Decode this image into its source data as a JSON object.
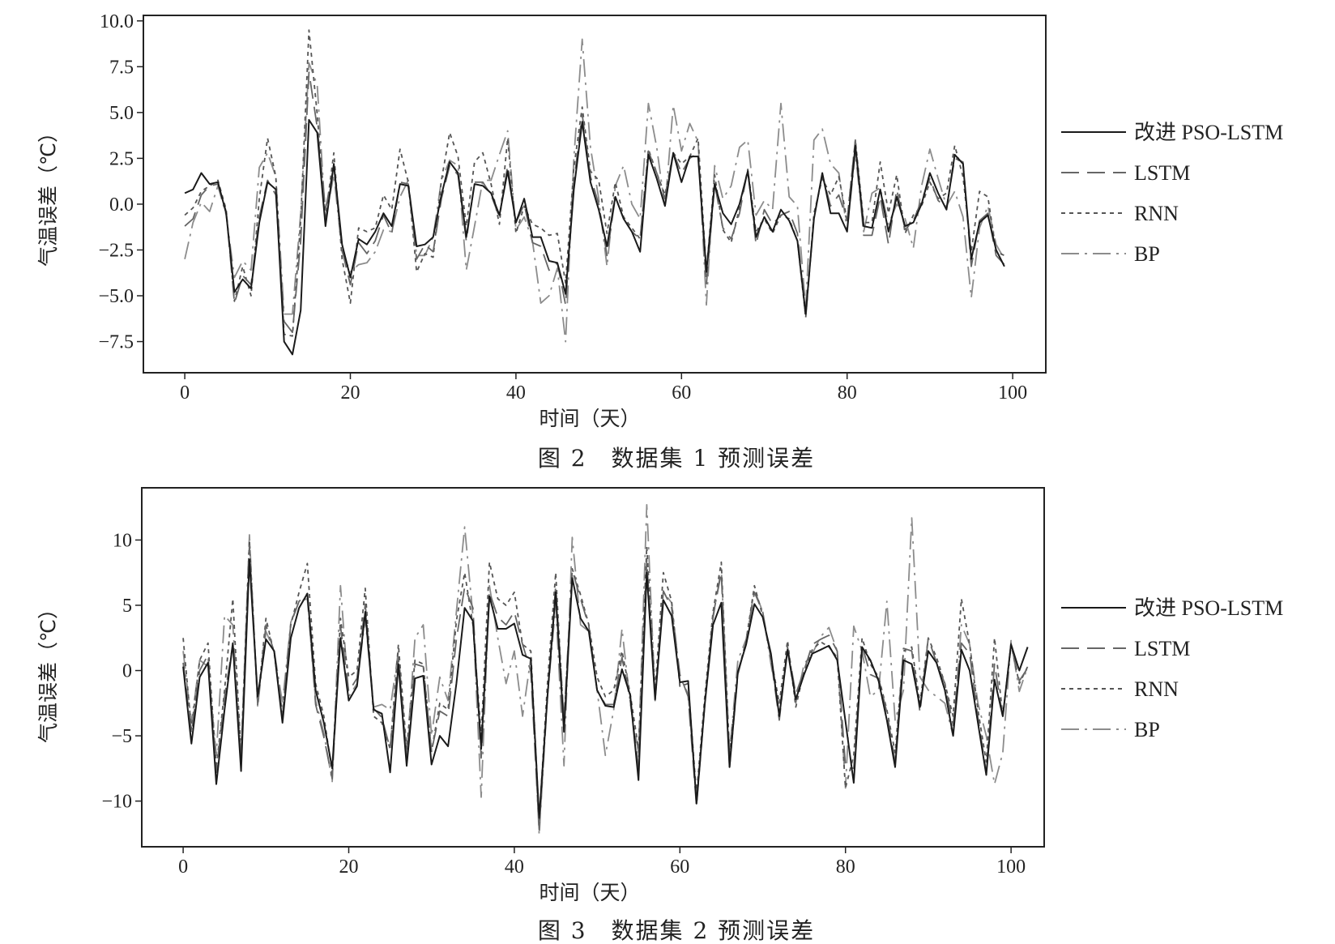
{
  "chart_data": [
    {
      "type": "line",
      "caption": "图 2　数据集 1 预测误差",
      "xlabel": "时间（天）",
      "ylabel": "气温误差（℃）",
      "xlim": [
        -5,
        104
      ],
      "ylim": [
        -9.2,
        10.3
      ],
      "xticks": [
        0,
        20,
        40,
        60,
        80,
        100
      ],
      "xtick_labels": [
        "0",
        "20",
        "40",
        "60",
        "80",
        "100"
      ],
      "yticks": [
        -7.5,
        -5.0,
        -2.5,
        0.0,
        2.5,
        5.0,
        7.5,
        10.0
      ],
      "ytick_labels": [
        "−7.5",
        "−5.0",
        "−2.5",
        "0.0",
        "2.5",
        "5.0",
        "7.5",
        "10.0"
      ],
      "grid": false,
      "legend_position": "outside-right",
      "series": [
        {
          "name": "改进 PSO-LSTM",
          "style": "solid",
          "color": "#1a1a1a",
          "values": [
            0.6,
            0.8,
            1.7,
            1.1,
            1.2,
            -0.5,
            -4.8,
            -4.1,
            -4.6,
            -1.0,
            1.2,
            0.8,
            -7.5,
            -8.2,
            -5.8,
            4.6,
            3.9,
            -1.2,
            2.2,
            -2.2,
            -4.0,
            -1.9,
            -2.2,
            -1.5,
            -0.5,
            -1.2,
            1.1,
            1.0,
            -2.3,
            -2.2,
            -1.8,
            0.5,
            2.3,
            1.7,
            -1.8,
            1.1,
            1.0,
            0.6,
            -0.6,
            1.8,
            -1.0,
            0.3,
            -1.8,
            -1.8,
            -3.1,
            -3.2,
            -4.9,
            0.8,
            4.5,
            1.2,
            -0.3,
            -2.3,
            0.4,
            -0.8,
            -1.5,
            -2.6,
            2.7,
            1.4,
            -0.1,
            2.8,
            1.2,
            2.6,
            2.6,
            -3.7,
            1.1,
            -0.5,
            -1.1,
            0.0,
            1.8,
            -1.8,
            -0.7,
            -1.5,
            -0.3,
            -0.9,
            -2.0,
            -6.0,
            -0.8,
            1.7,
            -0.5,
            -0.5,
            -1.5,
            3.2,
            -1.2,
            -1.3,
            0.8,
            -1.5,
            0.4,
            -1.2,
            -1.0,
            0.0,
            1.7,
            0.6,
            -0.3,
            2.7,
            2.2,
            -3.0,
            -1.0,
            -0.6,
            -2.5,
            -3.4
          ]
        },
        {
          "name": "LSTM",
          "style": "longdash",
          "color": "#666666",
          "values": [
            -1.2,
            -0.8,
            0.5,
            1.0,
            1.1,
            -0.4,
            -5.4,
            -3.9,
            -4.4,
            -0.7,
            1.3,
            0.5,
            -6.4,
            -7.0,
            -2.0,
            7.2,
            4.2,
            -0.3,
            2.1,
            -2.5,
            -4.4,
            -2.1,
            -2.7,
            -2.0,
            -0.6,
            -1.6,
            1.2,
            1.1,
            -3.0,
            -2.2,
            -2.6,
            0.3,
            2.1,
            1.6,
            -2.0,
            1.2,
            1.2,
            0.5,
            -0.7,
            2.1,
            -1.0,
            0.0,
            -2.1,
            -2.3,
            -3.6,
            -3.2,
            -5.5,
            1.2,
            4.9,
            1.5,
            0.0,
            -2.8,
            0.4,
            -0.8,
            -1.5,
            -1.9,
            2.9,
            1.7,
            0.3,
            2.8,
            1.7,
            2.5,
            2.8,
            -4.4,
            1.1,
            -1.3,
            -1.9,
            -0.5,
            1.9,
            -2.2,
            -0.3,
            -1.1,
            -0.6,
            -0.4,
            -1.6,
            -6.2,
            -0.7,
            1.6,
            -0.1,
            0.5,
            -0.9,
            3.5,
            -1.7,
            -1.7,
            0.4,
            -2.2,
            0.8,
            -1.4,
            -0.9,
            0.2,
            1.4,
            0.2,
            -0.2,
            2.5,
            2.3,
            -3.4,
            -0.9,
            -0.5,
            -2.8,
            -3.3
          ]
        },
        {
          "name": "RNN",
          "style": "dotted",
          "color": "#555555",
          "values": [
            -0.6,
            -0.2,
            0.7,
            1.0,
            1.3,
            -0.3,
            -5.3,
            -3.4,
            -5.0,
            0.3,
            3.6,
            1.5,
            -7.1,
            -7.2,
            -0.9,
            9.5,
            4.9,
            -0.7,
            2.8,
            -3.0,
            -5.4,
            -1.3,
            -1.5,
            -1.3,
            0.5,
            -0.3,
            3.0,
            1.2,
            -3.7,
            -2.7,
            -2.9,
            1.3,
            3.9,
            2.6,
            -1.2,
            2.3,
            2.8,
            1.1,
            -1.1,
            3.6,
            -1.6,
            -0.1,
            -1.1,
            -1.3,
            -1.7,
            -1.6,
            -4.3,
            2.0,
            5.3,
            1.8,
            1.3,
            -1.6,
            1.2,
            -0.7,
            -1.3,
            -1.9,
            3.0,
            1.7,
            0.5,
            2.8,
            2.2,
            2.6,
            3.6,
            -3.7,
            1.6,
            -1.4,
            -2.1,
            -0.2,
            1.9,
            -1.5,
            -0.8,
            -1.6,
            -0.6,
            -0.8,
            -2.0,
            -6.2,
            -0.5,
            1.4,
            0.5,
            1.5,
            -0.9,
            3.5,
            -1.0,
            -1.0,
            2.3,
            -0.5,
            1.6,
            -1.6,
            -0.6,
            -0.1,
            1.2,
            0.3,
            0.6,
            3.2,
            1.5,
            -2.6,
            0.7,
            0.4,
            -2.6,
            -2.8
          ]
        },
        {
          "name": "BP",
          "style": "dashdot",
          "color": "#8c8c8c",
          "values": [
            -3.0,
            -1.0,
            0.1,
            -0.4,
            1.0,
            -0.6,
            -4.0,
            -3.1,
            -3.6,
            2.0,
            2.8,
            1.5,
            -6.0,
            -6.0,
            -0.5,
            7.7,
            6.5,
            -0.8,
            1.6,
            -2.6,
            -3.7,
            -3.3,
            -3.2,
            -2.6,
            -1.4,
            -1.5,
            0.4,
            1.3,
            -2.8,
            -2.8,
            -1.8,
            1.3,
            2.4,
            2.1,
            -3.6,
            -1.2,
            1.3,
            1.3,
            2.7,
            4.0,
            -1.4,
            -0.7,
            -2.0,
            -5.4,
            -5.0,
            -3.5,
            -7.5,
            2.5,
            9.0,
            3.1,
            0.3,
            -3.4,
            1.0,
            2.1,
            0.0,
            -0.8,
            5.5,
            3.1,
            -0.2,
            5.4,
            2.9,
            4.4,
            3.4,
            -5.5,
            2.1,
            0.3,
            1.0,
            3.1,
            3.5,
            -0.6,
            0.2,
            -0.3,
            5.5,
            0.4,
            -0.1,
            -5.7,
            3.5,
            4.1,
            2.2,
            1.7,
            -1.4,
            2.8,
            -1.5,
            0.6,
            0.9,
            -1.1,
            0.0,
            -0.8,
            -2.4,
            1.0,
            3.0,
            1.4,
            -0.1,
            0.7,
            -0.7,
            -5.1,
            -1.3,
            -0.1,
            -2.2,
            -3.0
          ]
        }
      ]
    },
    {
      "type": "line",
      "caption": "图 3　数据集 2 预测误差",
      "xlabel": "时间（天）",
      "ylabel": "气温误差（℃）",
      "xlim": [
        -5,
        104
      ],
      "ylim": [
        -13.5,
        14.0
      ],
      "xticks": [
        0,
        20,
        40,
        60,
        80,
        100
      ],
      "xtick_labels": [
        "0",
        "20",
        "40",
        "60",
        "80",
        "100"
      ],
      "yticks": [
        -10,
        -5,
        0,
        5,
        10
      ],
      "ytick_labels": [
        "−10",
        "−5",
        "0",
        "5",
        "10"
      ],
      "grid": false,
      "legend_position": "outside-right",
      "series": [
        {
          "name": "改进 PSO-LSTM",
          "style": "solid",
          "color": "#1a1a1a",
          "values": [
            0.3,
            -5.6,
            -0.5,
            0.6,
            -8.7,
            -3.0,
            2.1,
            -7.7,
            8.5,
            -2.0,
            2.4,
            1.5,
            -4.0,
            2.5,
            4.8,
            5.9,
            -1.5,
            -4.0,
            -7.5,
            2.5,
            -2.3,
            -1.2,
            4.5,
            -3.0,
            -3.3,
            -7.8,
            0.5,
            -7.3,
            -0.6,
            -0.4,
            -7.2,
            -5.0,
            -5.8,
            -1.0,
            4.8,
            3.8,
            -6.0,
            5.7,
            3.2,
            3.2,
            3.6,
            1.2,
            0.9,
            -11.3,
            -2.0,
            6.0,
            -4.7,
            7.1,
            4.0,
            3.0,
            -1.5,
            -2.7,
            -2.8,
            0.1,
            -1.9,
            -8.4,
            7.5,
            -2.2,
            5.4,
            4.2,
            -0.9,
            -0.8,
            -10.2,
            -2.6,
            3.5,
            5.2,
            -7.4,
            -0.1,
            2.0,
            5.1,
            4.1,
            1.3,
            -3.5,
            1.6,
            -2.2,
            -0.3,
            1.3,
            1.6,
            1.9,
            0.8,
            -3.9,
            -8.6,
            1.8,
            0.8,
            -0.8,
            -3.8,
            -7.4,
            0.8,
            0.5,
            -2.8,
            1.5,
            0.6,
            -1.5,
            -5.0,
            1.6,
            0.0,
            -4.0,
            -8.0,
            -0.7,
            -3.5,
            2.0,
            0.0,
            1.8
          ]
        },
        {
          "name": "LSTM",
          "style": "longdash",
          "color": "#666666",
          "values": [
            0.6,
            -4.8,
            0.0,
            1.2,
            -7.8,
            -2.0,
            2.0,
            -7.0,
            9.6,
            -2.6,
            3.5,
            1.4,
            -3.5,
            3.6,
            5.3,
            5.9,
            -2.6,
            -5.1,
            -8.3,
            3.4,
            -1.6,
            -0.6,
            5.1,
            -2.9,
            -3.6,
            -6.0,
            1.0,
            -6.8,
            0.5,
            0.3,
            -6.2,
            -3.1,
            -3.5,
            2.4,
            6.4,
            4.8,
            -6.7,
            6.0,
            4.1,
            3.5,
            4.5,
            2.0,
            -0.1,
            -12.2,
            -1.9,
            6.5,
            -3.8,
            7.7,
            5.5,
            3.4,
            -1.5,
            -2.6,
            -2.6,
            1.0,
            -2.3,
            -7.4,
            8.5,
            -2.3,
            6.1,
            4.8,
            -0.3,
            -2.0,
            -10.4,
            -2.6,
            4.2,
            7.5,
            -7.4,
            -0.3,
            2.2,
            6.0,
            4.5,
            0.9,
            -3.8,
            1.8,
            -1.8,
            0.0,
            2.0,
            2.4,
            2.7,
            1.5,
            -7.3,
            -7.5,
            1.9,
            -0.3,
            -0.6,
            -3.2,
            -7.0,
            1.7,
            1.5,
            -3.2,
            2.5,
            0.6,
            -1.0,
            -4.2,
            2.1,
            1.3,
            -3.6,
            -7.8,
            0.5,
            -3.6,
            2.1,
            -0.8,
            0.2
          ]
        },
        {
          "name": "RNN",
          "style": "dotted",
          "color": "#555555",
          "values": [
            2.5,
            -4.5,
            0.8,
            2.1,
            -7.5,
            -1.5,
            5.5,
            -6.5,
            10.0,
            -2.5,
            4.0,
            1.3,
            -3.3,
            3.5,
            6.0,
            8.2,
            -1.0,
            -3.5,
            -7.8,
            4.0,
            -0.5,
            0.0,
            6.3,
            -3.5,
            -4.0,
            -6.0,
            2.0,
            -6.0,
            0.8,
            0.5,
            -6.2,
            -2.5,
            -3.0,
            3.8,
            7.5,
            3.5,
            -5.0,
            8.3,
            5.5,
            5.0,
            6.0,
            2.0,
            1.5,
            -11.5,
            -1.0,
            7.5,
            -4.2,
            7.8,
            5.8,
            3.5,
            -0.5,
            -2.0,
            -1.5,
            1.5,
            -1.8,
            -6.0,
            9.5,
            -1.5,
            7.5,
            5.3,
            -1.2,
            -1.0,
            -9.5,
            -2.0,
            4.5,
            8.3,
            -6.5,
            -0.2,
            2.3,
            6.5,
            4.2,
            1.0,
            -2.5,
            2.3,
            -2.8,
            0.0,
            1.6,
            2.2,
            1.8,
            1.0,
            -9.0,
            -6.5,
            2.5,
            0.5,
            -0.5,
            -3.0,
            -6.3,
            1.5,
            1.8,
            -2.5,
            2.5,
            1.0,
            -1.0,
            -3.5,
            5.5,
            2.0,
            -3.0,
            -7.0,
            2.5,
            -3.5,
            2.0,
            -1.0,
            0.3
          ]
        },
        {
          "name": "BP",
          "style": "dashdot",
          "color": "#8c8c8c",
          "values": [
            1.5,
            -4.0,
            0.8,
            0.3,
            -6.5,
            4.2,
            3.5,
            -6.5,
            10.4,
            -2.8,
            3.0,
            1.5,
            -2.5,
            3.7,
            5.3,
            5.5,
            -2.3,
            -4.8,
            -8.5,
            6.5,
            -2.0,
            -1.0,
            4.0,
            -2.8,
            -2.6,
            -3.0,
            1.5,
            -6.5,
            2.5,
            3.5,
            -5.0,
            -0.5,
            -2.3,
            4.5,
            11.0,
            4.2,
            -9.7,
            6.5,
            2.5,
            -1.0,
            1.5,
            -3.5,
            1.0,
            -12.6,
            -2.0,
            5.0,
            -7.3,
            10.2,
            3.5,
            3.0,
            -1.5,
            -6.5,
            -3.0,
            3.2,
            -2.5,
            -6.3,
            12.7,
            -2.0,
            6.0,
            5.2,
            -0.5,
            -1.8,
            -9.8,
            -2.5,
            4.0,
            7.8,
            -6.3,
            0.8,
            2.4,
            6.2,
            4.5,
            0.5,
            -3.0,
            1.6,
            -2.5,
            0.5,
            1.3,
            2.6,
            3.3,
            1.5,
            -9.0,
            3.4,
            1.5,
            -2.0,
            -1.5,
            5.3,
            -3.8,
            -1.5,
            11.7,
            -0.5,
            -1.5,
            -2.0,
            -2.5,
            -5.0,
            3.5,
            2.0,
            -2.5,
            -5.0,
            -8.7,
            -6.3,
            2.3,
            -1.6,
            0.3
          ]
        }
      ]
    }
  ]
}
